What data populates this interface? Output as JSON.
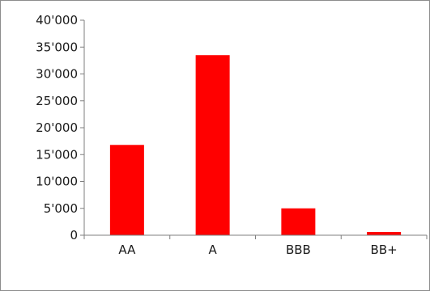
{
  "chart_data": {
    "type": "bar",
    "categories": [
      "AA",
      "A",
      "BBB",
      "BB+"
    ],
    "values": [
      16800,
      33500,
      5000,
      600
    ],
    "ylim": [
      0,
      40000
    ],
    "yticks": [
      0,
      5000,
      10000,
      15000,
      20000,
      25000,
      30000,
      35000,
      40000
    ],
    "ytick_labels": [
      "0",
      "5'000",
      "10'000",
      "15'000",
      "20'000",
      "25'000",
      "30'000",
      "35'000",
      "40'000"
    ],
    "grid": false,
    "legend": "none",
    "bar_color": "#ff0000",
    "axis_color": "#7f7f7f"
  }
}
